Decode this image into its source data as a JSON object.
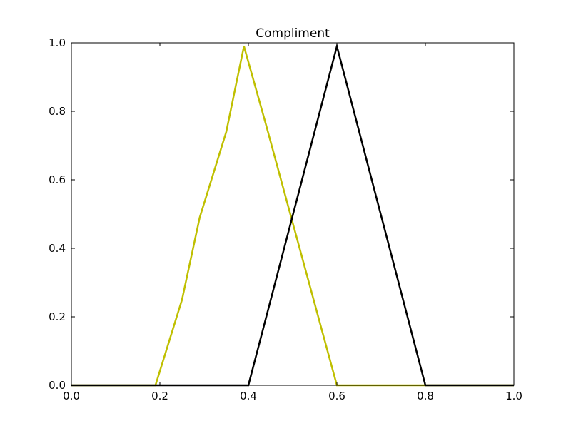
{
  "chart_data": {
    "type": "line",
    "title": "Compliment",
    "xlabel": "",
    "ylabel": "",
    "xlim": [
      0.0,
      1.0
    ],
    "ylim": [
      0.0,
      1.0
    ],
    "xticks": [
      "0.0",
      "0.2",
      "0.4",
      "0.6",
      "0.8",
      "1.0"
    ],
    "yticks": [
      "0.0",
      "0.2",
      "0.4",
      "0.6",
      "0.8",
      "1.0"
    ],
    "grid": false,
    "legend": "none",
    "series": [
      {
        "color": "#bfbf00",
        "x": [
          0.0,
          0.19,
          0.25,
          0.29,
          0.35,
          0.39,
          0.44,
          0.6,
          1.0
        ],
        "y": [
          0.0,
          0.0,
          0.25,
          0.49,
          0.74,
          0.99,
          0.76,
          0.0,
          0.0
        ]
      },
      {
        "color": "#000000",
        "x": [
          0.0,
          0.4,
          0.6,
          0.8,
          1.0
        ],
        "y": [
          0.0,
          0.0,
          0.99,
          0.0,
          0.0
        ]
      }
    ]
  }
}
